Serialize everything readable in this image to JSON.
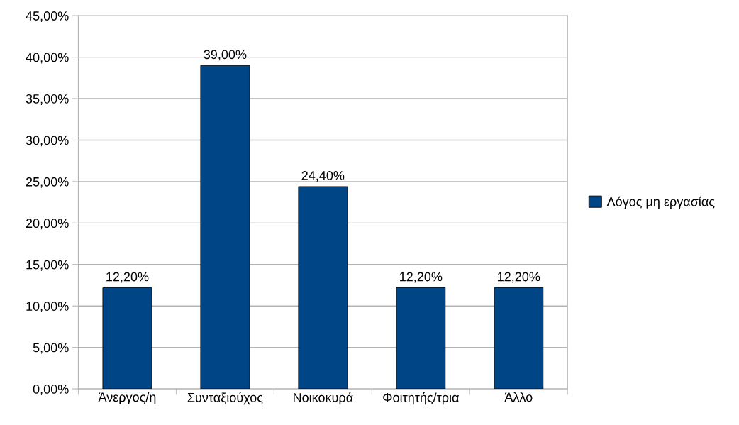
{
  "chart_data": {
    "type": "bar",
    "categories": [
      "Άνεργος/η",
      "Συνταξιούχος",
      "Νοικοκυρά",
      "Φοιτητής/τρια",
      "Άλλο"
    ],
    "series": [
      {
        "name": "Λόγος μη εργασίας",
        "color": "#004586",
        "values": [
          12.2,
          39.0,
          24.4,
          12.2,
          12.2
        ],
        "value_labels": [
          "12,20%",
          "39,00%",
          "24,40%",
          "12,20%",
          "12,20%"
        ]
      }
    ],
    "ylim": [
      0,
      45
    ],
    "yticks": [
      {
        "value": 0,
        "label": "0,00%"
      },
      {
        "value": 5,
        "label": "5,00%"
      },
      {
        "value": 10,
        "label": "10,00%"
      },
      {
        "value": 15,
        "label": "15,00%"
      },
      {
        "value": 20,
        "label": "20,00%"
      },
      {
        "value": 25,
        "label": "25,00%"
      },
      {
        "value": 30,
        "label": "30,00%"
      },
      {
        "value": 35,
        "label": "35,00%"
      },
      {
        "value": 40,
        "label": "40,00%"
      },
      {
        "value": 45,
        "label": "45,00%"
      }
    ],
    "grid": "y",
    "legend": "right"
  }
}
